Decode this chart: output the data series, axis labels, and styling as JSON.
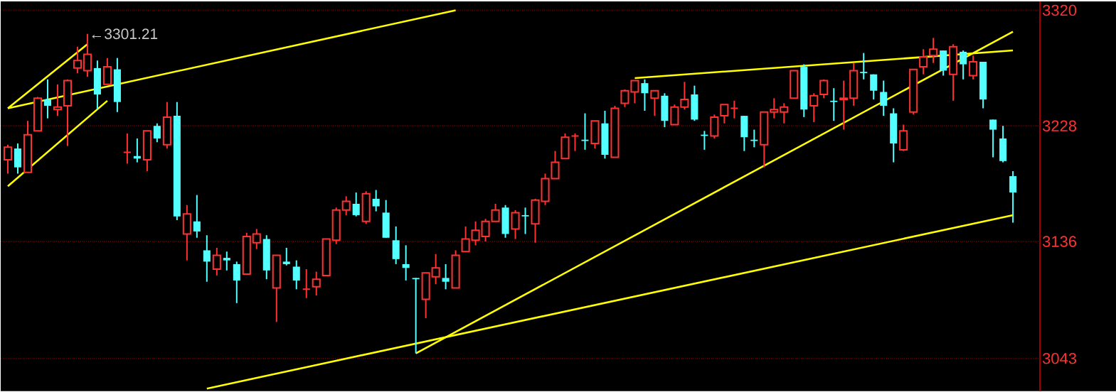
{
  "chart_data": {
    "type": "candlestick",
    "categories": [
      null,
      null,
      null,
      null,
      null,
      null,
      null,
      null,
      null,
      null,
      null,
      null,
      null,
      null,
      null,
      null,
      null,
      null,
      null,
      null,
      null,
      null,
      null,
      null,
      null,
      null,
      null,
      null,
      null,
      null,
      null,
      null,
      null,
      null,
      null,
      null,
      null,
      null,
      null,
      null,
      null,
      null,
      null,
      null,
      null,
      null,
      null,
      null,
      null,
      null,
      null,
      null,
      null,
      null,
      null,
      null,
      null,
      null,
      null,
      null,
      null,
      null,
      null,
      null,
      null,
      null,
      null,
      null,
      null,
      null,
      null,
      null,
      null,
      null,
      null,
      null,
      null,
      null,
      null,
      null,
      null,
      null,
      null,
      null,
      null,
      null,
      null,
      null,
      null,
      null,
      null,
      null,
      null,
      null,
      null,
      null,
      null,
      null,
      null,
      null,
      null,
      null
    ],
    "ohlc": [
      [
        3201,
        3213,
        3190,
        3211
      ],
      [
        3210,
        3214,
        3190,
        3195
      ],
      [
        3191,
        3232,
        3191,
        3221
      ],
      [
        3224,
        3251,
        3224,
        3250
      ],
      [
        3249,
        3265,
        3234,
        3244
      ],
      [
        3241,
        3261,
        3236,
        3243
      ],
      [
        3244,
        3265,
        3212,
        3264
      ],
      [
        3274,
        3291,
        3270,
        3280
      ],
      [
        3272,
        3301.21,
        3267,
        3285
      ],
      [
        3274,
        3280,
        3241,
        3253
      ],
      [
        3261,
        3282,
        3261,
        3275
      ],
      [
        3273,
        3282,
        3239,
        3247
      ],
      [
        3207,
        3222,
        3198,
        3207
      ],
      [
        3204,
        3218,
        3199,
        3202
      ],
      [
        3201,
        3224,
        3192,
        3224
      ],
      [
        3228,
        3230,
        3215,
        3218
      ],
      [
        3213,
        3247,
        3210,
        3235
      ],
      [
        3236,
        3247,
        3153,
        3156
      ],
      [
        3142,
        3165,
        3121,
        3158
      ],
      [
        3152,
        3173,
        3139,
        3144
      ],
      [
        3129,
        3141,
        3104,
        3120
      ],
      [
        3114,
        3131,
        3109,
        3125
      ],
      [
        3123,
        3128,
        3113,
        3121
      ],
      [
        3118,
        3120,
        3087,
        3105
      ],
      [
        3110,
        3143,
        3110,
        3140
      ],
      [
        3135,
        3146,
        3130,
        3142
      ],
      [
        3138,
        3141,
        3106,
        3113
      ],
      [
        3099,
        3125,
        3072,
        3125
      ],
      [
        3120,
        3131,
        3117,
        3118
      ],
      [
        3116,
        3121,
        3098,
        3105
      ],
      [
        3098,
        3114,
        3091,
        3098
      ],
      [
        3100,
        3112,
        3093,
        3106
      ],
      [
        3109,
        3138,
        3109,
        3138
      ],
      [
        3137,
        3163,
        3134,
        3161
      ],
      [
        3161,
        3172,
        3157,
        3168
      ],
      [
        3166,
        3175,
        3156,
        3157
      ],
      [
        3152,
        3176,
        3150,
        3174
      ],
      [
        3170,
        3177,
        3160,
        3164
      ],
      [
        3159,
        3169,
        3139,
        3139
      ],
      [
        3137,
        3148,
        3118,
        3122
      ],
      [
        3118,
        3133,
        3105,
        3115
      ],
      [
        3107,
        3107,
        3047,
        3106
      ],
      [
        3090,
        3111,
        3075,
        3111
      ],
      [
        3108,
        3126,
        3102,
        3115
      ],
      [
        3107,
        3118,
        3098,
        3104
      ],
      [
        3099,
        3129,
        3099,
        3125
      ],
      [
        3128,
        3148,
        3128,
        3138
      ],
      [
        3137,
        3152,
        3133,
        3145
      ],
      [
        3140,
        3154,
        3136,
        3152
      ],
      [
        3152,
        3166,
        3152,
        3161
      ],
      [
        3163,
        3165,
        3139,
        3142
      ],
      [
        3146,
        3161,
        3138,
        3159
      ],
      [
        3157,
        3163,
        3142,
        3156
      ],
      [
        3150,
        3170,
        3135,
        3169
      ],
      [
        3168,
        3190,
        3165,
        3186
      ],
      [
        3186,
        3208,
        3186,
        3199
      ],
      [
        3202,
        3222,
        3202,
        3219
      ],
      [
        3220,
        3222,
        3208,
        3220
      ],
      [
        3217,
        3238,
        3209,
        3216
      ],
      [
        3214,
        3232,
        3210,
        3232
      ],
      [
        3230,
        3240,
        3202,
        3205
      ],
      [
        3203,
        3244,
        3203,
        3242
      ],
      [
        3246,
        3257,
        3243,
        3256
      ],
      [
        3255,
        3264,
        3246,
        3264
      ],
      [
        3262,
        3265,
        3240,
        3254
      ],
      [
        3250,
        3256,
        3236,
        3256
      ],
      [
        3252,
        3254,
        3227,
        3232
      ],
      [
        3229,
        3245,
        3229,
        3243
      ],
      [
        3243,
        3263,
        3241,
        3249
      ],
      [
        3253,
        3260,
        3232,
        3233
      ],
      [
        3221,
        3224,
        3209,
        3220
      ],
      [
        3220,
        3237,
        3218,
        3235
      ],
      [
        3236,
        3245,
        3230,
        3245
      ],
      [
        3242,
        3248,
        3234,
        3242
      ],
      [
        3236,
        3236,
        3208,
        3219
      ],
      [
        3217,
        3225,
        3211,
        3216
      ],
      [
        3213,
        3239,
        3195,
        3239
      ],
      [
        3239,
        3250,
        3234,
        3241
      ],
      [
        3239,
        3246,
        3230,
        3243
      ],
      [
        3250,
        3272,
        3250,
        3272
      ],
      [
        3275,
        3277,
        3235,
        3241
      ],
      [
        3244,
        3254,
        3231,
        3252
      ],
      [
        3253,
        3265,
        3250,
        3264
      ],
      [
        3248,
        3258,
        3232,
        3247
      ],
      [
        3249,
        3264,
        3225,
        3250
      ],
      [
        3250,
        3278,
        3244,
        3272
      ],
      [
        3271,
        3286,
        3265,
        3270
      ],
      [
        3269,
        3269,
        3249,
        3256
      ],
      [
        3255,
        3264,
        3236,
        3244
      ],
      [
        3238,
        3242,
        3199,
        3214
      ],
      [
        3209,
        3229,
        3208,
        3224
      ],
      [
        3239,
        3273,
        3237,
        3273
      ],
      [
        3275,
        3289,
        3269,
        3283
      ],
      [
        3284,
        3298,
        3278,
        3289
      ],
      [
        3288,
        3288,
        3268,
        3272
      ],
      [
        3269,
        3293,
        3248,
        3291
      ],
      [
        3287,
        3288,
        3265,
        3277
      ],
      [
        3268,
        3284,
        3265,
        3279
      ],
      [
        3279,
        3279,
        3242,
        3249
      ],
      [
        3233,
        3233,
        3203,
        3225
      ],
      [
        3218,
        3228,
        3199,
        3200
      ],
      [
        3188,
        3192,
        3151,
        3175
      ]
    ],
    "colors": [
      "#ff3232",
      "#54ffff",
      "#ff3232",
      "#ff3232",
      "#54ffff",
      "#ff3232",
      "#ff3232",
      "#ff3232",
      "#ff3232",
      "#54ffff",
      "#ff3232",
      "#54ffff",
      "#ff3232",
      "#54ffff",
      "#ff3232",
      "#54ffff",
      "#ff3232",
      "#54ffff",
      "#ff3232",
      "#54ffff",
      "#54ffff",
      "#ff3232",
      "#54ffff",
      "#54ffff",
      "#ff3232",
      "#ff3232",
      "#54ffff",
      "#ff3232",
      "#54ffff",
      "#54ffff",
      "#ff3232",
      "#ff3232",
      "#ff3232",
      "#ff3232",
      "#ff3232",
      "#54ffff",
      "#ff3232",
      "#54ffff",
      "#54ffff",
      "#54ffff",
      "#54ffff",
      "#54ffff",
      "#ff3232",
      "#ff3232",
      "#54ffff",
      "#ff3232",
      "#ff3232",
      "#ff3232",
      "#ff3232",
      "#ff3232",
      "#54ffff",
      "#ff3232",
      "#54ffff",
      "#ff3232",
      "#ff3232",
      "#ff3232",
      "#ff3232",
      "#ff3232",
      "#54ffff",
      "#ff3232",
      "#54ffff",
      "#ff3232",
      "#ff3232",
      "#ff3232",
      "#54ffff",
      "#ff3232",
      "#54ffff",
      "#ff3232",
      "#ff3232",
      "#54ffff",
      "#54ffff",
      "#ff3232",
      "#ff3232",
      "#ff3232",
      "#54ffff",
      "#54ffff",
      "#ff3232",
      "#ff3232",
      "#ff3232",
      "#ff3232",
      "#54ffff",
      "#ff3232",
      "#ff3232",
      "#54ffff",
      "#ff3232",
      "#ff3232",
      "#54ffff",
      "#54ffff",
      "#54ffff",
      "#54ffff",
      "#ff3232",
      "#ff3232",
      "#ff3232",
      "#ff3232",
      "#54ffff",
      "#ff3232",
      "#54ffff",
      "#ff3232",
      "#54ffff",
      "#54ffff",
      "#54ffff",
      "#54ffff"
    ],
    "series": [
      {
        "type": "line",
        "color": "#ffff00",
        "values": [
          3242,
          null,
          null,
          null,
          null,
          null,
          null,
          null,
          null,
          null,
          null,
          null,
          null,
          null,
          null,
          null,
          null,
          null,
          null,
          null,
          null,
          null,
          null,
          null,
          null,
          null,
          null,
          null,
          null,
          null,
          null,
          null,
          null,
          null,
          null,
          null,
          null,
          null,
          null,
          null,
          null,
          null,
          null,
          null,
          null,
          3320,
          null,
          null,
          null,
          null,
          null,
          null,
          null,
          null,
          null,
          null,
          null,
          null,
          null,
          null,
          null,
          null,
          null,
          null,
          null,
          null,
          null,
          null,
          null,
          null,
          null,
          null,
          null,
          null,
          null,
          null,
          null,
          null,
          null,
          null,
          null,
          null,
          null,
          null,
          null,
          null,
          null,
          null,
          null,
          null,
          null,
          null,
          null,
          null,
          null,
          null,
          null,
          null,
          null,
          null,
          null,
          null
        ]
      },
      {
        "type": "line",
        "color": "#ffff00",
        "values": [
          null,
          null,
          null,
          null,
          null,
          null,
          null,
          null,
          null,
          null,
          null,
          null,
          null,
          null,
          null,
          null,
          null,
          null,
          null,
          null,
          3019,
          null,
          null,
          null,
          null,
          null,
          null,
          null,
          null,
          null,
          null,
          null,
          null,
          null,
          null,
          null,
          null,
          null,
          null,
          null,
          null,
          null,
          null,
          null,
          null,
          null,
          null,
          null,
          null,
          null,
          null,
          null,
          null,
          null,
          null,
          null,
          null,
          null,
          null,
          null,
          null,
          null,
          null,
          null,
          null,
          null,
          null,
          null,
          null,
          null,
          null,
          null,
          null,
          null,
          null,
          null,
          null,
          null,
          null,
          null,
          null,
          null,
          null,
          null,
          null,
          null,
          null,
          null,
          null,
          null,
          null,
          null,
          null,
          null,
          null,
          null,
          null,
          null,
          null,
          null,
          null,
          3157
        ]
      },
      {
        "type": "line",
        "color": "#ffff00",
        "values": [
          3242,
          null,
          null,
          null,
          null,
          null,
          null,
          null,
          3293,
          null,
          null,
          null,
          null,
          null,
          null,
          null,
          null,
          null,
          null,
          null,
          null,
          null,
          null,
          null,
          null,
          null,
          null,
          null,
          null,
          null,
          null,
          null,
          null,
          null,
          null,
          null,
          null,
          null,
          null,
          null,
          null,
          null,
          null,
          null,
          null,
          null,
          null,
          null,
          null,
          null,
          null,
          null,
          null,
          null,
          null,
          null,
          null,
          null,
          null,
          null,
          null,
          null,
          null,
          null,
          null,
          null,
          null,
          null,
          null,
          null,
          null,
          null,
          null,
          null,
          null,
          null,
          null,
          null,
          null,
          null,
          null,
          null,
          null,
          null,
          null,
          null,
          null,
          null,
          null,
          null,
          null,
          null,
          null,
          null,
          null,
          null,
          null,
          null,
          null,
          null,
          null,
          null
        ]
      },
      {
        "type": "line",
        "color": "#ffff00",
        "values": [
          3180,
          null,
          null,
          null,
          null,
          null,
          null,
          null,
          null,
          null,
          3248,
          null,
          null,
          null,
          null,
          null,
          null,
          null,
          null,
          null,
          null,
          null,
          null,
          null,
          null,
          null,
          null,
          null,
          null,
          null,
          null,
          null,
          null,
          null,
          null,
          null,
          null,
          null,
          null,
          null,
          null,
          null,
          null,
          null,
          null,
          null,
          null,
          null,
          null,
          null,
          null,
          null,
          null,
          null,
          null,
          null,
          null,
          null,
          null,
          null,
          null,
          null,
          null,
          null,
          null,
          null,
          null,
          null,
          null,
          null,
          null,
          null,
          null,
          null,
          null,
          null,
          null,
          null,
          null,
          null,
          null,
          null,
          null,
          null,
          null,
          null,
          null,
          null,
          null,
          null,
          null,
          null,
          null,
          null,
          null,
          null,
          null,
          null,
          null,
          null,
          null,
          null
        ]
      },
      {
        "type": "line",
        "color": "#ffff00",
        "values": [
          null,
          null,
          null,
          null,
          null,
          null,
          null,
          null,
          null,
          null,
          null,
          null,
          null,
          null,
          null,
          null,
          null,
          null,
          null,
          null,
          null,
          null,
          null,
          null,
          null,
          null,
          null,
          null,
          null,
          null,
          null,
          null,
          null,
          null,
          null,
          null,
          null,
          null,
          null,
          null,
          null,
          3047,
          null,
          null,
          null,
          null,
          null,
          null,
          null,
          null,
          null,
          null,
          null,
          null,
          null,
          null,
          null,
          null,
          null,
          null,
          null,
          null,
          null,
          null,
          null,
          null,
          null,
          null,
          null,
          null,
          null,
          null,
          null,
          null,
          null,
          null,
          null,
          null,
          null,
          null,
          null,
          null,
          null,
          null,
          null,
          null,
          null,
          null,
          null,
          null,
          null,
          null,
          null,
          null,
          null,
          null,
          null,
          null,
          null,
          null,
          null,
          3303
        ]
      },
      {
        "type": "line",
        "color": "#ffff00",
        "values": [
          null,
          null,
          null,
          null,
          null,
          null,
          null,
          null,
          null,
          null,
          null,
          null,
          null,
          null,
          null,
          null,
          null,
          null,
          null,
          null,
          null,
          null,
          null,
          null,
          null,
          null,
          null,
          null,
          null,
          null,
          null,
          null,
          null,
          null,
          null,
          null,
          null,
          null,
          null,
          null,
          null,
          null,
          null,
          null,
          null,
          null,
          null,
          null,
          null,
          null,
          null,
          null,
          null,
          null,
          null,
          null,
          null,
          null,
          null,
          null,
          null,
          null,
          null,
          3266,
          null,
          null,
          null,
          null,
          null,
          null,
          null,
          null,
          null,
          null,
          null,
          null,
          null,
          null,
          null,
          null,
          null,
          null,
          null,
          null,
          null,
          null,
          null,
          null,
          null,
          null,
          null,
          null,
          null,
          null,
          null,
          null,
          null,
          null,
          null,
          null,
          null,
          3288
        ]
      }
    ],
    "ylim": [
      3017,
      3327
    ],
    "yticks": [
      3320,
      3228,
      3136,
      3043
    ],
    "grid": "y",
    "tick_labels": "y",
    "annotations": [
      "←3301.21"
    ]
  }
}
